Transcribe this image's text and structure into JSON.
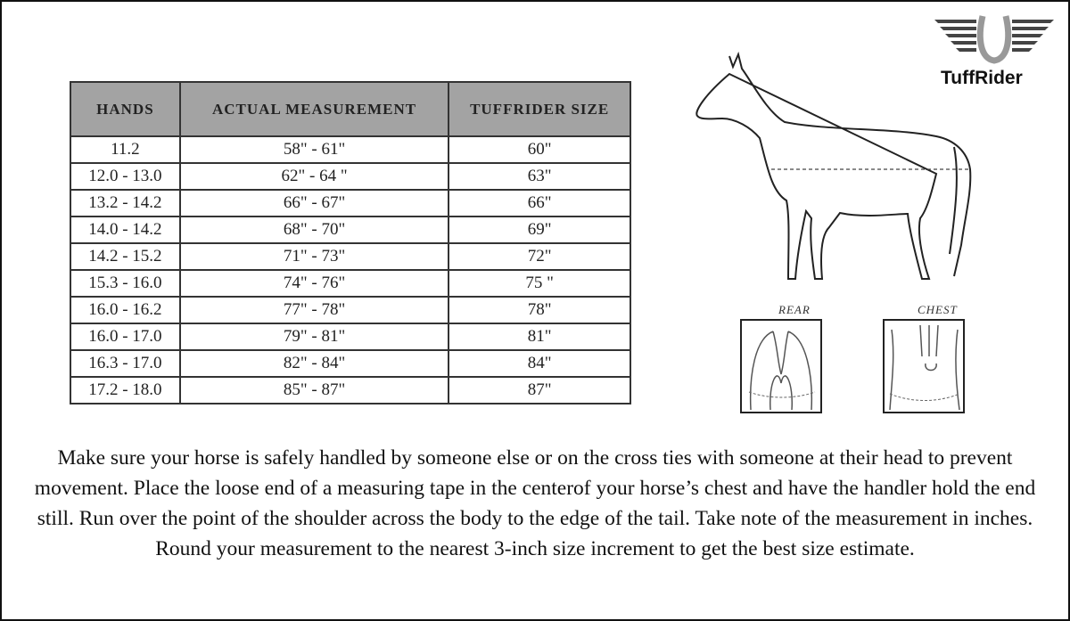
{
  "brand": {
    "name": "TuffRider"
  },
  "table": {
    "headers": [
      "HANDS",
      "ACTUAL MEASUREMENT",
      "TUFFRIDER SIZE"
    ],
    "rows": [
      [
        "11.2",
        "58\" - 61\"",
        "60\""
      ],
      [
        "12.0 - 13.0",
        "62\" - 64 \"",
        "63\""
      ],
      [
        "13.2 - 14.2",
        "66\" - 67\"",
        "66\""
      ],
      [
        "14.0 - 14.2",
        "68\" - 70\"",
        "69\""
      ],
      [
        "14.2 - 15.2",
        "71\" - 73\"",
        "72\""
      ],
      [
        "15.3 - 16.0",
        "74\" - 76\"",
        "75 \""
      ],
      [
        "16.0 - 16.2",
        "77\" - 78\"",
        "78\""
      ],
      [
        "16.0 - 17.0",
        "79\" - 81\"",
        "81\""
      ],
      [
        "16.3 - 17.0",
        "82\" - 84\"",
        "84\""
      ],
      [
        "17.2 - 18.0",
        "85\" - 87\"",
        "87\""
      ]
    ]
  },
  "diagram": {
    "rear_label": "REAR",
    "chest_label": "CHEST"
  },
  "instructions": "Make sure your horse is safely handled by someone else or on the cross ties with someone at their head to prevent movement. Place the loose end of a measuring tape in the centerof your horse’s chest and have the handler hold the end still. Run over the point of the shoulder across the body to the edge of the tail. Take note of the measurement in inches. Round your measurement to the nearest 3-inch size increment to get the best size estimate."
}
